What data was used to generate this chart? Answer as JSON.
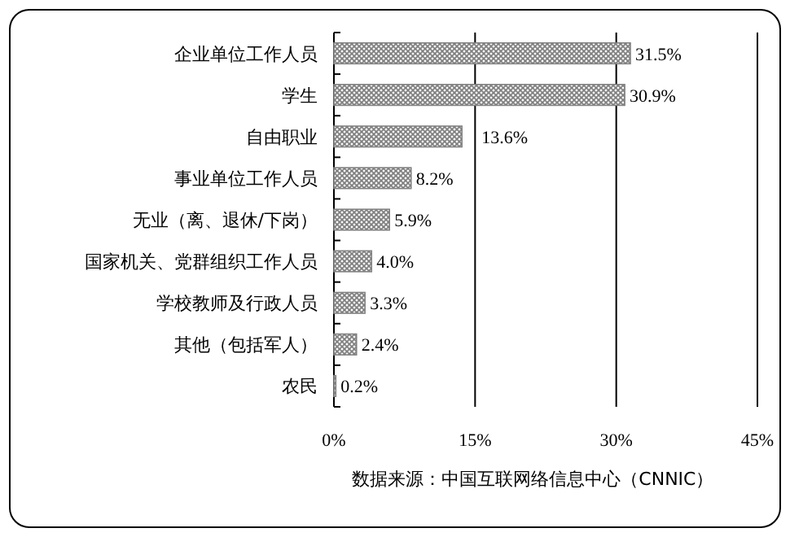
{
  "chart_data": {
    "type": "bar",
    "orientation": "horizontal",
    "categories": [
      "企业单位工作人员",
      "学生",
      "自由职业",
      "事业单位工作人员",
      "无业（离、退休/下岗）",
      "国家机关、党群组织工作人员",
      "学校教师及行政人员",
      "其他（包括军人）",
      "农民"
    ],
    "values": [
      31.5,
      30.9,
      13.6,
      8.2,
      5.9,
      4.0,
      3.3,
      2.4,
      0.2
    ],
    "value_labels": [
      "31.5%",
      "30.9%",
      "13.6%",
      "8.2%",
      "5.9%",
      "4.0%",
      "3.3%",
      "2.4%",
      "0.2%"
    ],
    "color": "#808080",
    "xlim": [
      0,
      45
    ],
    "xticks": [
      {
        "value": 0,
        "label": "0%"
      },
      {
        "value": 15,
        "label": "15%"
      },
      {
        "value": 30,
        "label": "30%"
      },
      {
        "value": 45,
        "label": "45%"
      }
    ],
    "grid": "x",
    "annotations": [
      "数据来源：中国互联网络信息中心（CNNIC）"
    ]
  }
}
